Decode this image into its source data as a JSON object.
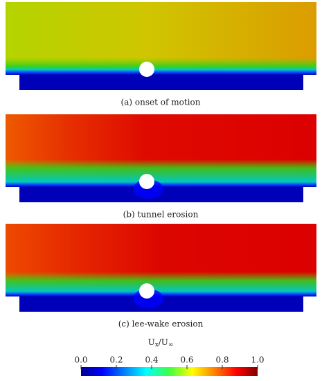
{
  "figure": {
    "panels": [
      {
        "caption": "(a) onset of motion"
      },
      {
        "caption": "(b) tunnel erosion"
      },
      {
        "caption": "(c) lee-wake erosion"
      }
    ],
    "colorbar": {
      "label": {
        "base": "U",
        "sub": "x",
        "sep": "/U",
        "sub2": "∞"
      },
      "lim": [
        0,
        1
      ],
      "ticks": [
        {
          "value": 0,
          "label": "0.0"
        },
        {
          "value": 0.2,
          "label": "0.2"
        },
        {
          "value": 0.4,
          "label": "0.4"
        },
        {
          "value": 0.6,
          "label": "0.6"
        },
        {
          "value": 0.8,
          "label": "0.8"
        },
        {
          "value": 1,
          "label": "1.0"
        }
      ]
    }
  }
}
